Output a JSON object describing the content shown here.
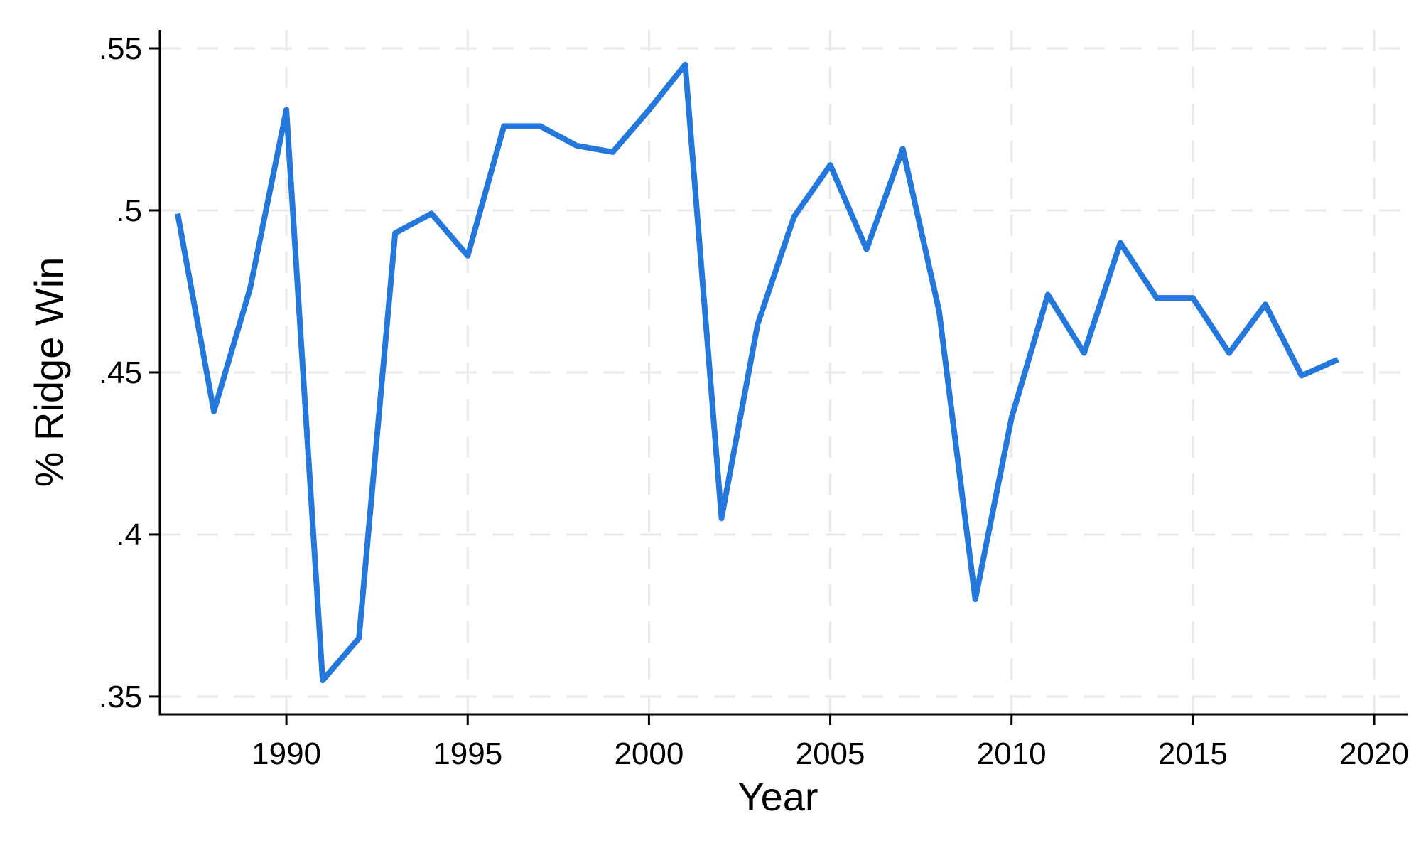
{
  "chart_data": {
    "type": "line",
    "title": "",
    "xlabel": "Year",
    "ylabel": "% Ridge Win",
    "series_name": "% Ridge Win",
    "x": [
      1987,
      1988,
      1989,
      1990,
      1991,
      1992,
      1993,
      1994,
      1995,
      1996,
      1997,
      1998,
      1999,
      2000,
      2001,
      2002,
      2003,
      2004,
      2005,
      2006,
      2007,
      2008,
      2009,
      2010,
      2011,
      2012,
      2013,
      2014,
      2015,
      2016,
      2017,
      2018,
      2019
    ],
    "values": [
      0.499,
      0.438,
      0.476,
      0.531,
      0.355,
      0.368,
      0.493,
      0.499,
      0.486,
      0.526,
      0.526,
      0.52,
      0.518,
      0.531,
      0.545,
      0.405,
      0.465,
      0.498,
      0.514,
      0.488,
      0.519,
      0.469,
      0.38,
      0.436,
      0.474,
      0.456,
      0.49,
      0.473,
      0.473,
      0.456,
      0.471,
      0.449,
      0.454
    ],
    "x_ticks": [
      {
        "value": 1990,
        "label": "1990"
      },
      {
        "value": 1995,
        "label": "1995"
      },
      {
        "value": 2000,
        "label": "2000"
      },
      {
        "value": 2005,
        "label": "2005"
      },
      {
        "value": 2010,
        "label": "2010"
      },
      {
        "value": 2015,
        "label": "2015"
      },
      {
        "value": 2020,
        "label": "2020"
      }
    ],
    "y_ticks": [
      {
        "value": 0.35,
        "label": ".35"
      },
      {
        "value": 0.4,
        "label": ".4"
      },
      {
        "value": 0.45,
        "label": ".45"
      },
      {
        "value": 0.5,
        "label": ".5"
      },
      {
        "value": 0.55,
        "label": ".55"
      }
    ],
    "xlim": [
      1986.51,
      2020.94
    ],
    "ylim": [
      0.3445,
      0.5557
    ],
    "grid": "both-dashed",
    "legend": "none",
    "line_color": "#2478dc",
    "grid_color": "#e9e9e9",
    "axis_color": "#000000"
  }
}
